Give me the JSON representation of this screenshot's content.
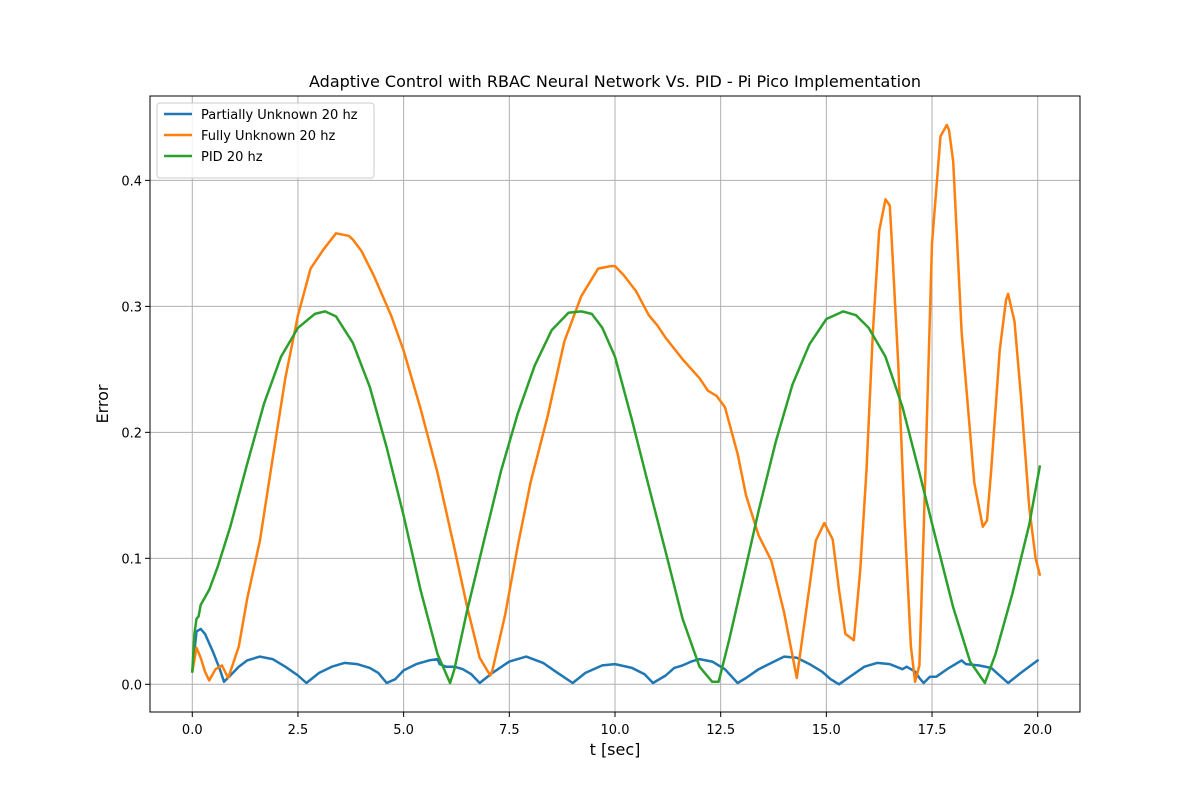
{
  "chart_data": {
    "type": "line",
    "title": "Adaptive Control with RBAC Neural Network Vs. PID - Pi Pico Implementation",
    "xlabel": "t [sec]",
    "ylabel": "Error",
    "xlim": [
      -1.0,
      21.0
    ],
    "ylim": [
      -0.022,
      0.467
    ],
    "xticks": [
      0.0,
      2.5,
      5.0,
      7.5,
      10.0,
      12.5,
      15.0,
      17.5,
      20.0
    ],
    "xtick_labels": [
      "0.0",
      "2.5",
      "5.0",
      "7.5",
      "10.0",
      "12.5",
      "15.0",
      "17.5",
      "20.0"
    ],
    "yticks": [
      0.0,
      0.1,
      0.2,
      0.3,
      0.4
    ],
    "ytick_labels": [
      "0.0",
      "0.1",
      "0.2",
      "0.3",
      "0.4"
    ],
    "grid": true,
    "legend_position": "upper-left",
    "series": [
      {
        "name": "Partially Unknown 20 hz",
        "color": "#1f77b4",
        "x": [
          0.0,
          0.1,
          0.2,
          0.3,
          0.5,
          0.65,
          0.75,
          0.9,
          1.1,
          1.3,
          1.6,
          1.9,
          2.2,
          2.5,
          2.7,
          3.0,
          3.3,
          3.6,
          3.9,
          4.2,
          4.4,
          4.6,
          4.8,
          5.0,
          5.3,
          5.6,
          5.8,
          5.85,
          6.0,
          6.2,
          6.4,
          6.6,
          6.8,
          7.1,
          7.5,
          7.9,
          8.3,
          8.6,
          9.0,
          9.3,
          9.7,
          10.0,
          10.4,
          10.7,
          10.9,
          11.2,
          11.4,
          11.6,
          11.8,
          12.0,
          12.3,
          12.6,
          12.9,
          13.1,
          13.4,
          13.7,
          14.0,
          14.3,
          14.6,
          14.9,
          15.1,
          15.3,
          15.6,
          15.9,
          16.2,
          16.5,
          16.8,
          16.9,
          17.1,
          17.2,
          17.3,
          17.45,
          17.6,
          17.9,
          18.2,
          18.3,
          18.6,
          18.9,
          19.3,
          19.6,
          20.0
        ],
        "y": [
          0.01,
          0.042,
          0.044,
          0.04,
          0.025,
          0.012,
          0.002,
          0.007,
          0.014,
          0.019,
          0.022,
          0.02,
          0.014,
          0.007,
          0.001,
          0.009,
          0.014,
          0.017,
          0.016,
          0.013,
          0.009,
          0.001,
          0.004,
          0.011,
          0.016,
          0.019,
          0.02,
          0.016,
          0.014,
          0.014,
          0.012,
          0.008,
          0.001,
          0.009,
          0.018,
          0.022,
          0.017,
          0.01,
          0.001,
          0.009,
          0.015,
          0.016,
          0.013,
          0.008,
          0.001,
          0.007,
          0.013,
          0.015,
          0.018,
          0.02,
          0.018,
          0.012,
          0.001,
          0.005,
          0.012,
          0.017,
          0.022,
          0.021,
          0.016,
          0.01,
          0.004,
          0.0,
          0.007,
          0.014,
          0.017,
          0.016,
          0.012,
          0.014,
          0.01,
          0.005,
          0.001,
          0.006,
          0.006,
          0.013,
          0.019,
          0.016,
          0.015,
          0.013,
          0.001,
          0.009,
          0.019
        ]
      },
      {
        "name": "Fully Unknown 20 hz",
        "color": "#ff7f0e",
        "x": [
          0.0,
          0.1,
          0.2,
          0.3,
          0.4,
          0.55,
          0.7,
          0.85,
          1.1,
          1.3,
          1.6,
          1.9,
          2.2,
          2.5,
          2.8,
          3.1,
          3.4,
          3.7,
          3.8,
          4.0,
          4.3,
          4.7,
          5.0,
          5.4,
          5.8,
          6.2,
          6.5,
          6.8,
          7.05,
          7.1,
          7.4,
          7.7,
          8.0,
          8.4,
          8.8,
          9.2,
          9.6,
          9.9,
          10.0,
          10.2,
          10.5,
          10.8,
          11.0,
          11.2,
          11.6,
          12.0,
          12.2,
          12.4,
          12.6,
          12.9,
          13.1,
          13.4,
          13.7,
          14.0,
          14.3,
          14.55,
          14.75,
          14.95,
          15.15,
          15.3,
          15.45,
          15.65,
          15.8,
          15.95,
          16.1,
          16.25,
          16.4,
          16.5,
          16.55,
          16.7,
          16.85,
          17.0,
          17.1,
          17.2,
          17.3,
          17.5,
          17.7,
          17.85,
          17.9,
          18.0,
          18.2,
          18.5,
          18.7,
          18.8,
          18.9,
          19.1,
          19.25,
          19.3,
          19.45,
          19.6,
          19.8,
          19.95,
          20.05
        ],
        "y": [
          0.01,
          0.029,
          0.021,
          0.01,
          0.003,
          0.012,
          0.015,
          0.005,
          0.03,
          0.068,
          0.114,
          0.179,
          0.243,
          0.293,
          0.33,
          0.345,
          0.358,
          0.356,
          0.353,
          0.344,
          0.324,
          0.293,
          0.265,
          0.219,
          0.168,
          0.108,
          0.062,
          0.021,
          0.007,
          0.011,
          0.055,
          0.11,
          0.16,
          0.212,
          0.272,
          0.308,
          0.33,
          0.332,
          0.332,
          0.325,
          0.312,
          0.293,
          0.285,
          0.275,
          0.258,
          0.243,
          0.233,
          0.229,
          0.22,
          0.183,
          0.15,
          0.118,
          0.098,
          0.057,
          0.005,
          0.065,
          0.114,
          0.128,
          0.115,
          0.075,
          0.04,
          0.035,
          0.09,
          0.17,
          0.28,
          0.36,
          0.385,
          0.38,
          0.35,
          0.255,
          0.13,
          0.03,
          0.002,
          0.015,
          0.12,
          0.35,
          0.435,
          0.444,
          0.44,
          0.415,
          0.28,
          0.16,
          0.125,
          0.13,
          0.17,
          0.265,
          0.305,
          0.31,
          0.288,
          0.23,
          0.14,
          0.1,
          0.087
        ]
      },
      {
        "name": "PID 20 hz",
        "color": "#2ca02c",
        "x": [
          0.0,
          0.05,
          0.1,
          0.15,
          0.2,
          0.4,
          0.6,
          0.9,
          1.3,
          1.7,
          2.1,
          2.5,
          2.9,
          3.14,
          3.4,
          3.8,
          4.2,
          4.6,
          5.0,
          5.4,
          5.8,
          6.1,
          6.2,
          6.5,
          6.9,
          7.3,
          7.7,
          8.1,
          8.5,
          8.9,
          9.2,
          9.45,
          9.7,
          10.0,
          10.4,
          10.8,
          11.2,
          11.6,
          12.0,
          12.3,
          12.45,
          12.7,
          13.0,
          13.4,
          13.8,
          14.2,
          14.6,
          15.0,
          15.4,
          15.7,
          16.0,
          16.4,
          16.8,
          17.2,
          17.6,
          18.0,
          18.4,
          18.75,
          19.0,
          19.4,
          19.8,
          20.05
        ],
        "y": [
          0.01,
          0.04,
          0.052,
          0.054,
          0.063,
          0.075,
          0.093,
          0.125,
          0.175,
          0.223,
          0.26,
          0.283,
          0.294,
          0.296,
          0.292,
          0.271,
          0.236,
          0.188,
          0.134,
          0.075,
          0.024,
          0.001,
          0.012,
          0.058,
          0.114,
          0.169,
          0.215,
          0.253,
          0.281,
          0.295,
          0.296,
          0.294,
          0.283,
          0.26,
          0.21,
          0.157,
          0.105,
          0.052,
          0.014,
          0.002,
          0.002,
          0.035,
          0.079,
          0.138,
          0.192,
          0.238,
          0.27,
          0.29,
          0.296,
          0.293,
          0.283,
          0.26,
          0.22,
          0.168,
          0.114,
          0.061,
          0.018,
          0.001,
          0.024,
          0.072,
          0.127,
          0.173
        ]
      }
    ]
  }
}
